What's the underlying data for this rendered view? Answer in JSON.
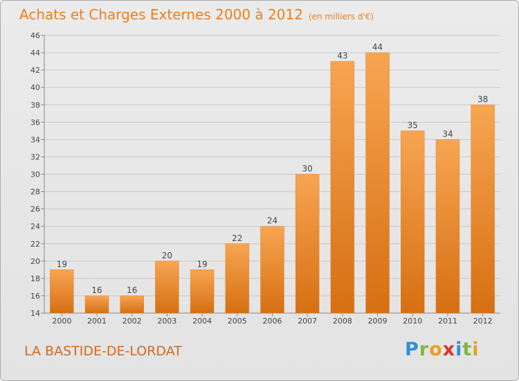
{
  "header": {
    "title": "Achats et Charges Externes 2000 à 2012",
    "subtitle": "(en milliers d'€)"
  },
  "footer": {
    "commune": "LA BASTIDE-DE-LORDAT",
    "logo": "Proxiti"
  },
  "colors": {
    "title": "#f07d1a",
    "bar_light": "#f7a552",
    "bar_dark": "#d66f12",
    "grid": "#c8c8c8",
    "background": "#e3e3e3"
  },
  "chart_data": {
    "type": "bar",
    "categories": [
      "2000",
      "2001",
      "2002",
      "2003",
      "2004",
      "2005",
      "2006",
      "2007",
      "2008",
      "2009",
      "2010",
      "2011",
      "2012"
    ],
    "values": [
      19,
      16,
      16,
      20,
      19,
      22,
      24,
      30,
      43,
      44,
      35,
      34,
      38
    ],
    "ylim": [
      14,
      46
    ],
    "yticks": [
      14,
      16,
      18,
      20,
      22,
      24,
      26,
      28,
      30,
      32,
      34,
      36,
      38,
      40,
      42,
      44,
      46
    ],
    "grid": true,
    "data_labels": true,
    "xlabel": "",
    "ylabel": ""
  }
}
